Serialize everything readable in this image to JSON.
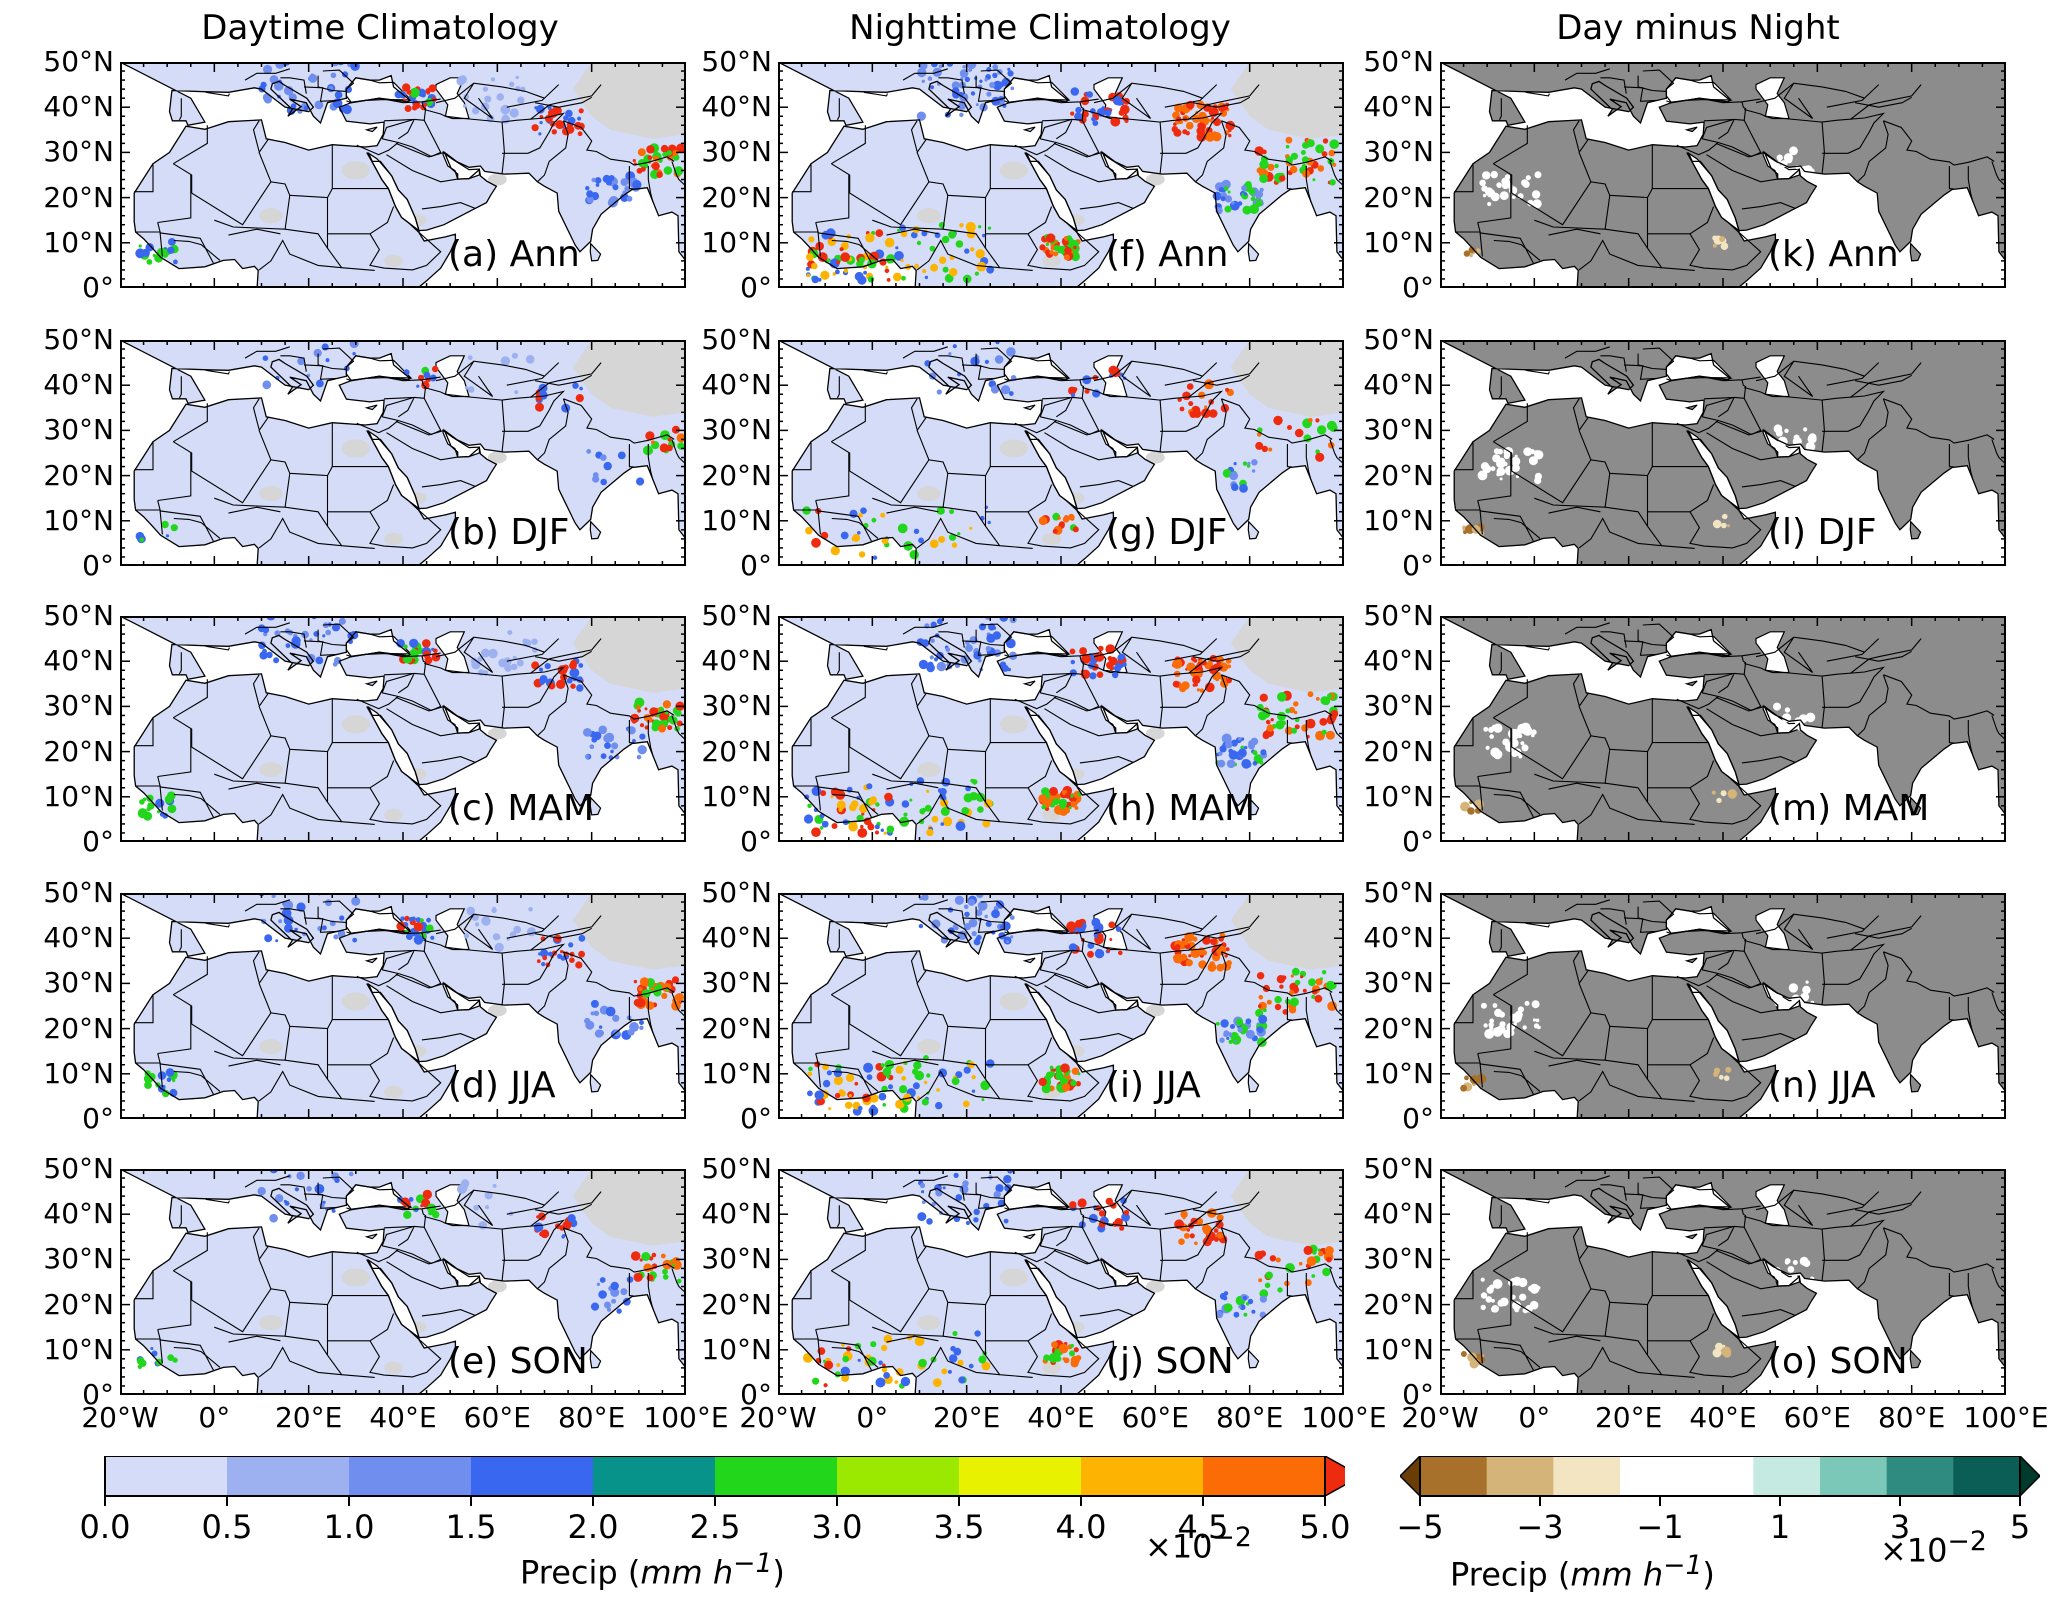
{
  "columns": [
    {
      "title": "Daytime Climatology",
      "style": "day"
    },
    {
      "title": "Nighttime Climatology",
      "style": "night"
    },
    {
      "title": "Day minus Night",
      "style": "diff"
    }
  ],
  "panel_labels": [
    [
      "(a) Ann",
      "(b) DJF",
      "(c) MAM",
      "(d) JJA",
      "(e) SON"
    ],
    [
      "(f) Ann",
      "(g) DJF",
      "(h) MAM",
      "(i) JJA",
      "(j) SON"
    ],
    [
      "(k) Ann",
      "(l) DJF",
      "(m) MAM",
      "(n) JJA",
      "(o) SON"
    ]
  ],
  "lat_ticks": [
    "50°N",
    "40°N",
    "30°N",
    "20°N",
    "10°N",
    "0°"
  ],
  "lon_ticks": [
    "20°W",
    "0°",
    "20°E",
    "40°E",
    "60°E",
    "80°E",
    "100°E"
  ],
  "colors": {
    "land_default": "#d4dcf7",
    "ocean": "#ffffff",
    "no_data": "#d6d6d6",
    "diff_land": "#8c8c8c",
    "heavy": "#ee2b0e",
    "moderate": "#3b6cf0",
    "border": "#000000"
  },
  "colorbar_left": {
    "ticks": [
      "0.0",
      "0.5",
      "1.0",
      "1.5",
      "2.0",
      "2.5",
      "3.0",
      "3.5",
      "4.0",
      "4.5",
      "5.0"
    ],
    "colors": [
      "#d4dcf7",
      "#9db1f0",
      "#6f8eee",
      "#3a67ef",
      "#07928a",
      "#22d61b",
      "#9be800",
      "#e8f200",
      "#fdb400",
      "#fb6b06",
      "#ee2b0e"
    ],
    "title": "Precip (",
    "units": "mm h",
    "exponent": "−1",
    "title_close": ")",
    "multiplier": "×10",
    "multiplier_exp": "−2"
  },
  "colorbar_right": {
    "ticks": [
      "−5",
      "−3",
      "−1",
      "1",
      "3",
      "5"
    ],
    "colors": [
      "#6a3d06",
      "#a7702b",
      "#d5b47a",
      "#f3e4c2",
      "#ffffff",
      "#ffffff",
      "#c5eae1",
      "#7cc8b8",
      "#2f8a80",
      "#0b5e55",
      "#003a2c"
    ],
    "title": "Precip (",
    "units": "mm h",
    "exponent": "−1",
    "title_close": ")",
    "multiplier": "×10",
    "multiplier_exp": "−2"
  }
}
